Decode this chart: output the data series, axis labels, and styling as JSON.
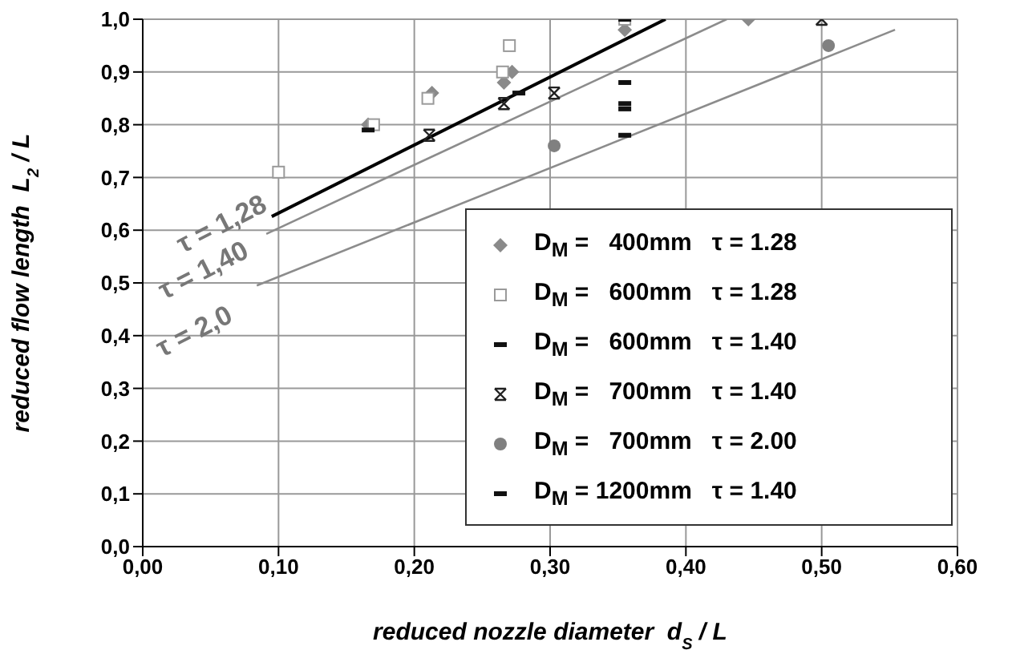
{
  "chart_data": {
    "type": "scatter",
    "xlabel": "reduced nozzle diameter  d$_{S}$ / L",
    "ylabel": "reduced flow length  L$_{2}$ / L",
    "xlim": [
      0,
      0.6
    ],
    "xticks": [
      {
        "value": 0,
        "label": "0,00"
      },
      {
        "value": 0.1,
        "label": "0,10"
      },
      {
        "value": 0.2,
        "label": "0,20"
      },
      {
        "value": 0.3,
        "label": "0,30"
      },
      {
        "value": 0.4,
        "label": "0,40"
      },
      {
        "value": 0.5,
        "label": "0,50"
      },
      {
        "value": 0.6,
        "label": "0,60"
      }
    ],
    "ylim": [
      0,
      1
    ],
    "yticks": [
      {
        "value": 0,
        "label": "0,0"
      },
      {
        "value": 0.1,
        "label": "0,1"
      },
      {
        "value": 0.2,
        "label": "0,2"
      },
      {
        "value": 0.3,
        "label": "0,3"
      },
      {
        "value": 0.4,
        "label": "0,4"
      },
      {
        "value": 0.5,
        "label": "0,5"
      },
      {
        "value": 0.6,
        "label": "0,6"
      },
      {
        "value": 0.7,
        "label": "0,7"
      },
      {
        "value": 0.8,
        "label": "0,8"
      },
      {
        "value": 0.9,
        "label": "0,9"
      },
      {
        "value": 1,
        "label": "1,0"
      }
    ],
    "grid": true,
    "legend": "bottom right",
    "series": [
      {
        "name": "D$_{M}$ =   400mm   τ = 1.28",
        "color": "#8a8a8a",
        "marker": "diamond",
        "x": [
          0.166,
          0.213,
          0.266,
          0.272,
          0.355,
          0.446
        ],
        "values": [
          0.8,
          0.86,
          0.88,
          0.9,
          0.98,
          1.0
        ]
      },
      {
        "name": "D$_{M}$ =   600mm   τ = 1.28",
        "color": "#9a9a9a",
        "marker": "square",
        "x": [
          0.1,
          0.17,
          0.21,
          0.27,
          0.265,
          0.355
        ],
        "values": [
          0.71,
          0.8,
          0.85,
          0.95,
          0.9,
          1.0
        ]
      },
      {
        "name": "D$_{M}$ =   600mm   τ = 1.40",
        "color": "#111111",
        "x": [
          0.166,
          0.277,
          0.355
        ],
        "values": [
          0.79,
          0.86,
          1.0
        ]
      },
      {
        "name": "D$_{M}$ =   700mm   τ = 1.40",
        "color": "#222222",
        "marker": "cross",
        "x": [
          0.211,
          0.266,
          0.303,
          0.5
        ],
        "values": [
          0.78,
          0.84,
          0.86,
          1.0
        ]
      },
      {
        "name": "D$_{M}$ =   700mm   τ = 2.00",
        "color": "#808080",
        "marker": "circle",
        "x": [
          0.303,
          0.505
        ],
        "values": [
          0.76,
          0.95
        ]
      },
      {
        "name": "D$_{M}$ = 1200mm   τ = 1.40",
        "color": "#111111",
        "x": [
          0.355,
          0.355,
          0.355,
          0.355
        ],
        "values": [
          0.88,
          0.84,
          0.83,
          0.78
        ]
      },
      {
        "type": "line",
        "color": "#000000",
        "marker": "none",
        "x": [
          0.095,
          0.385
        ],
        "values": [
          0.626,
          1.0
        ]
      },
      {
        "type": "line",
        "color": "#8c8c8c",
        "marker": "none",
        "x": [
          0.091,
          0.43
        ],
        "values": [
          0.593,
          1.0
        ]
      },
      {
        "type": "line",
        "color": "#8c8c8c",
        "marker": "none",
        "x": [
          0.084,
          0.554
        ],
        "values": [
          0.495,
          0.98
        ]
      }
    ],
    "annotations": [
      {
        "text": "τ = 1,28",
        "x": 0.095,
        "y": 0.626
      },
      {
        "text": "τ = 1,40",
        "x": 0.091,
        "y": 0.593
      },
      {
        "text": "τ = 2,0",
        "x": 0.084,
        "y": 0.495
      }
    ]
  }
}
